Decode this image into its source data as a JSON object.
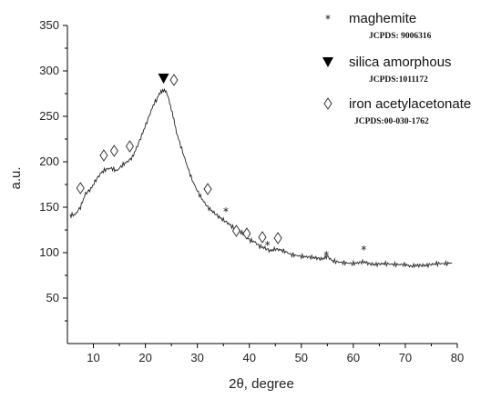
{
  "chart_data": {
    "type": "line",
    "xlabel": "2θ, degree",
    "ylabel": "a.u.",
    "xlim": [
      5,
      80
    ],
    "ylim": [
      0,
      350
    ],
    "xticks": [
      10,
      20,
      30,
      40,
      50,
      60,
      70,
      80
    ],
    "yticks": [
      50,
      100,
      150,
      200,
      250,
      300,
      350
    ],
    "series": [
      {
        "x": [
          5.5,
          6.5,
          7.5,
          8.5,
          9.5,
          10.5,
          11.5,
          12.5,
          13.5,
          14.5,
          15.5,
          16.5,
          17.5,
          18.5,
          19.5,
          20.5,
          21.5,
          22.5,
          23.0,
          23.5,
          24.0,
          24.5,
          25.0,
          25.5,
          26.0,
          27.0,
          28.0,
          29.0,
          30.0,
          31.0,
          32.0,
          33.0,
          34.0,
          35.0,
          36.0,
          37.0,
          38.0,
          39.0,
          40.0,
          41.0,
          42.0,
          43.0,
          44.0,
          45.0,
          46.0,
          47.0,
          48.0,
          50.0,
          52.0,
          54.0,
          55.0,
          56.0,
          58.0,
          60.0,
          62.0,
          63.0,
          64.0,
          66.0,
          68.0,
          70.0,
          71.0,
          72.0,
          74.0,
          76.0,
          78.0,
          79.0
        ],
        "values": [
          141,
          142,
          150,
          165,
          170,
          180,
          188,
          192,
          193,
          190,
          196,
          200,
          205,
          218,
          232,
          247,
          262,
          272,
          278,
          279,
          276,
          270,
          258,
          245,
          232,
          214,
          196,
          180,
          168,
          158,
          150,
          145,
          140,
          136,
          132,
          127,
          124,
          120,
          114,
          112,
          107,
          105,
          102,
          104,
          103,
          101,
          98,
          96,
          95,
          93,
          96,
          91,
          89,
          88,
          90,
          88,
          87,
          88,
          87,
          87,
          85,
          86,
          86,
          88,
          88,
          89
        ]
      }
    ],
    "markers": [
      {
        "symbol": "diamond",
        "points": [
          [
            7.5,
            171
          ],
          [
            12.0,
            207
          ],
          [
            14.0,
            212
          ],
          [
            17.0,
            217
          ],
          [
            25.5,
            290
          ],
          [
            32.0,
            170
          ],
          [
            37.5,
            124
          ],
          [
            39.5,
            121
          ],
          [
            42.5,
            117
          ],
          [
            45.5,
            116
          ]
        ]
      },
      {
        "symbol": "star",
        "points": [
          [
            35.5,
            146
          ],
          [
            43.5,
            109
          ],
          [
            54.8,
            98
          ],
          [
            62.0,
            104
          ]
        ]
      },
      {
        "symbol": "triangle",
        "points": [
          [
            23.5,
            292
          ]
        ]
      }
    ],
    "legend": {
      "placement": "top-right",
      "entries": [
        {
          "symbol": "star",
          "label": "maghemite",
          "sub": "JCPDS: 9006316"
        },
        {
          "symbol": "triangle",
          "label": "silica amorphous",
          "sub": "JCPDS:1011172"
        },
        {
          "symbol": "diamond",
          "label": "iron acetylacetonate",
          "sub": "JCPDS:00-030-1762"
        }
      ]
    },
    "grid": false
  }
}
